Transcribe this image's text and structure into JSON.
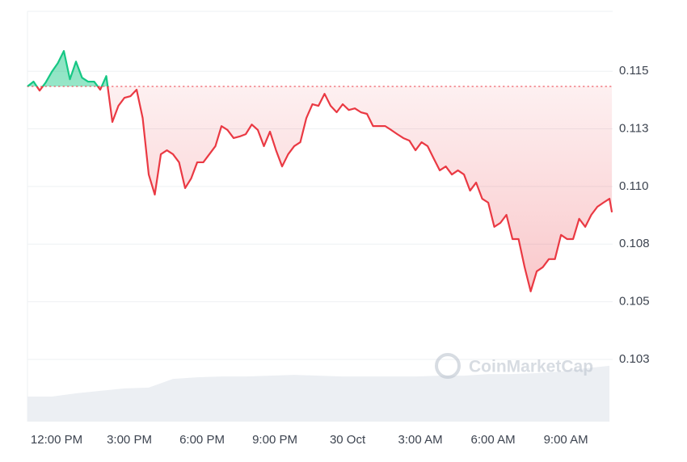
{
  "chart_data": {
    "type": "line",
    "watermark": "CoinMarketCap",
    "baseline": 0.11434,
    "up_color": "#16c784",
    "down_color": "#ea3943",
    "grid": true,
    "xlim": [
      10.8,
      34.93
    ],
    "ylim": [
      0.0998,
      0.1176
    ],
    "xticks": [
      {
        "value": 12,
        "label": "12:00 PM"
      },
      {
        "value": 15,
        "label": "3:00 PM"
      },
      {
        "value": 18,
        "label": "6:00 PM"
      },
      {
        "value": 21,
        "label": "9:00 PM"
      },
      {
        "value": 24,
        "label": "30 Oct"
      },
      {
        "value": 27,
        "label": "3:00 AM"
      },
      {
        "value": 30,
        "label": "6:00 AM"
      },
      {
        "value": 33,
        "label": "9:00 AM"
      }
    ],
    "yticks": [
      0.115,
      {
        "value": 0.1125,
        "label": "0.113"
      },
      {
        "value": 0.11,
        "label": "0.110"
      },
      {
        "value": 0.1075,
        "label": "0.108"
      },
      0.105,
      {
        "value": 0.1025,
        "label": "0.103"
      }
    ],
    "x": [
      10.8,
      11.05,
      11.3,
      11.55,
      11.8,
      12.05,
      12.3,
      12.55,
      12.8,
      13.05,
      13.3,
      13.55,
      13.8,
      14.05,
      14.3,
      14.55,
      14.8,
      15.05,
      15.3,
      15.55,
      15.8,
      16.05,
      16.3,
      16.55,
      16.8,
      17.05,
      17.3,
      17.55,
      17.8,
      18.05,
      18.3,
      18.55,
      18.8,
      19.05,
      19.3,
      19.55,
      19.8,
      20.05,
      20.3,
      20.55,
      20.8,
      21.05,
      21.3,
      21.55,
      21.8,
      22.05,
      22.3,
      22.55,
      22.8,
      23.05,
      23.3,
      23.55,
      23.8,
      24.05,
      24.3,
      24.55,
      24.8,
      25.05,
      25.3,
      25.55,
      25.8,
      26.05,
      26.3,
      26.55,
      26.8,
      27.05,
      27.3,
      27.55,
      27.8,
      28.05,
      28.3,
      28.55,
      28.8,
      29.05,
      29.3,
      29.55,
      29.8,
      30.05,
      30.3,
      30.55,
      30.8,
      31.05,
      31.3,
      31.55,
      31.8,
      32.05,
      32.3,
      32.55,
      32.8,
      33.05,
      33.3,
      33.55,
      33.8,
      34.05,
      34.3,
      34.55,
      34.8,
      34.9
    ],
    "values": [
      0.11434,
      0.11455,
      0.11416,
      0.11451,
      0.11497,
      0.11535,
      0.11588,
      0.11465,
      0.11542,
      0.11472,
      0.11455,
      0.11455,
      0.1142,
      0.11479,
      0.1128,
      0.1135,
      0.11385,
      0.11392,
      0.1142,
      0.11297,
      0.11052,
      0.10965,
      0.1114,
      0.11157,
      0.1114,
      0.11105,
      0.10993,
      0.11035,
      0.11105,
      0.11105,
      0.1114,
      0.11175,
      0.11262,
      0.11245,
      0.1121,
      0.11217,
      0.11227,
      0.11269,
      0.11245,
      0.11175,
      0.11238,
      0.11157,
      0.11087,
      0.1114,
      0.11175,
      0.11192,
      0.11297,
      0.11357,
      0.1135,
      0.11402,
      0.1135,
      0.11322,
      0.11357,
      0.11332,
      0.11339,
      0.11322,
      0.11315,
      0.11262,
      0.11262,
      0.11262,
      0.11245,
      0.11227,
      0.1121,
      0.11199,
      0.11157,
      0.11192,
      0.11175,
      0.11122,
      0.1107,
      0.11087,
      0.11052,
      0.1107,
      0.11052,
      0.10982,
      0.11017,
      0.10947,
      0.1093,
      0.10825,
      0.10842,
      0.10877,
      0.10772,
      0.10772,
      0.1065,
      0.10545,
      0.10632,
      0.1065,
      0.10685,
      0.10685,
      0.1079,
      0.10772,
      0.10772,
      0.1086,
      0.10825,
      0.10877,
      0.10912,
      0.1093,
      0.10947,
      0.10888
    ],
    "volume": {
      "color": "#eceff3",
      "y2lim": [
        0,
        100
      ],
      "x": [
        10.8,
        11.8,
        12.8,
        13.8,
        14.8,
        15.8,
        16.8,
        17.8,
        18.8,
        19.8,
        20.8,
        21.8,
        22.8,
        23.8,
        24.8,
        25.8,
        26.8,
        27.8,
        28.8,
        29.8,
        30.8,
        31.8,
        32.8,
        33.8,
        34.8
      ],
      "values": [
        6.1,
        6.1,
        6.9,
        7.5,
        8.1,
        8.3,
        10.4,
        10.8,
        11.0,
        11.0,
        11.2,
        11.4,
        11.2,
        11.0,
        11.0,
        11.0,
        11.0,
        11.2,
        11.2,
        11.6,
        11.6,
        11.8,
        12.2,
        13.0,
        13.6
      ]
    }
  }
}
